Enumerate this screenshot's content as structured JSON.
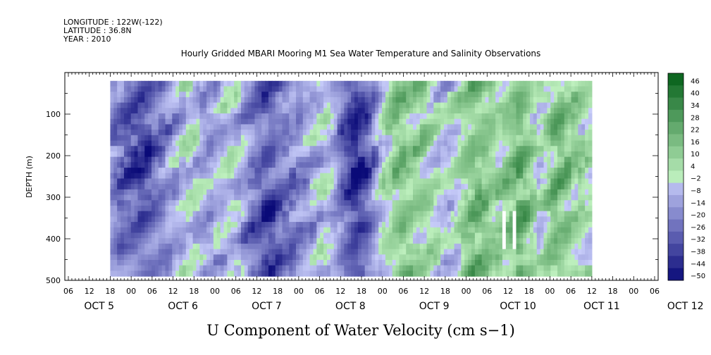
{
  "header": {
    "longitude": "LONGITUDE : 122W(-122)",
    "latitude": "LATITUDE : 36.8N",
    "year": "YEAR : 2010"
  },
  "chart_data": {
    "type": "heatmap",
    "title": "Hourly Gridded MBARI Mooring M1 Sea Water Temperature and Salinity Observations",
    "xlabel": "U Component of Water Velocity (cm s−1)",
    "ylabel": "DEPTH (m)",
    "ylim": [
      500,
      0
    ],
    "y_ticks": [
      100,
      200,
      300,
      400,
      500
    ],
    "x_start_hour": 6,
    "x_hour_ticks": [
      "06",
      "12",
      "18",
      "00",
      "06",
      "12",
      "18",
      "00",
      "06",
      "12",
      "18",
      "00",
      "06",
      "12",
      "18",
      "00",
      "06",
      "12",
      "18",
      "00",
      "06",
      "12",
      "18",
      "00",
      "06",
      "12",
      "18",
      "00",
      "06"
    ],
    "day_labels": [
      "OCT 5",
      "OCT 6",
      "OCT 7",
      "OCT 8",
      "OCT 9",
      "OCT 10",
      "OCT 11",
      "OCT 12"
    ],
    "colorbar": {
      "levels": [
        -50,
        -44,
        -38,
        -32,
        -26,
        -20,
        -14,
        -8,
        -2,
        4,
        10,
        16,
        22,
        28,
        34,
        40,
        46
      ],
      "tick_labels": [
        "46",
        "40",
        "34",
        "28",
        "22",
        "16",
        "10",
        "4",
        "−2",
        "−8",
        "−14",
        "−20",
        "−26",
        "−32",
        "−38",
        "−44",
        "−50"
      ],
      "negative_color": "#3030c0",
      "positive_color": "#00a030"
    },
    "grid": false,
    "legend": "colorbar-right",
    "data_depth_range_m": [
      20,
      490
    ],
    "data_time_range_hours": [
      12,
      150
    ],
    "column_mean_cm_s": [
      -15,
      -20,
      -24,
      -26,
      -28,
      -28,
      -25,
      -20,
      -16,
      -12,
      -8,
      -4,
      -2,
      -4,
      -8,
      -12,
      -10,
      -6,
      -2,
      -4,
      -10,
      -16,
      -22,
      -26,
      -28,
      -26,
      -22,
      -20,
      -18,
      -15,
      -12,
      -8,
      -4,
      -2,
      -6,
      -14,
      -24,
      -32,
      -36,
      -32,
      -22,
      -10,
      2,
      8,
      12,
      14,
      12,
      10,
      8,
      6,
      2,
      -2,
      -4,
      0,
      6,
      12,
      16,
      16,
      14,
      10,
      8,
      10,
      16,
      20,
      16,
      8,
      0,
      4,
      12,
      16,
      14,
      10,
      8,
      4,
      2
    ]
  }
}
